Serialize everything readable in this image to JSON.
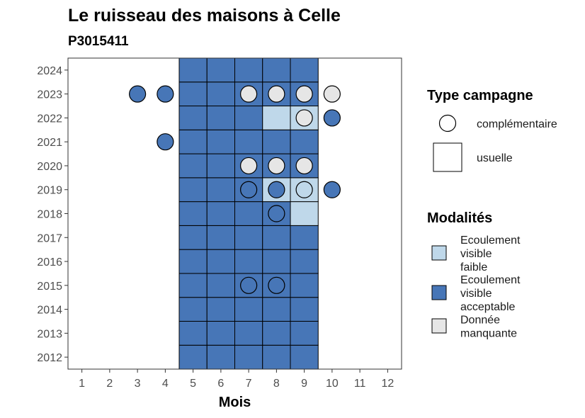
{
  "chart_data": {
    "type": "heatmap",
    "title": "Le ruisseau des maisons à Celle",
    "subtitle": "P3015411",
    "xlabel": "Mois",
    "ylabel": "",
    "x_ticks": [
      "1",
      "2",
      "3",
      "4",
      "5",
      "6",
      "7",
      "8",
      "9",
      "10",
      "11",
      "12"
    ],
    "y_ticks": [
      "2012",
      "2013",
      "2014",
      "2015",
      "2016",
      "2017",
      "2018",
      "2019",
      "2020",
      "2021",
      "2022",
      "2023",
      "2024"
    ],
    "xlim": [
      0.5,
      12.5
    ],
    "ylim": [
      2011.5,
      2024.5
    ],
    "grid": false,
    "colors": {
      "ecoulement_visible_faible": "#bfd8ea",
      "ecoulement_visible_acceptable": "#4776b7",
      "donnee_manquante": "#e6e6e6"
    },
    "legend_type": {
      "title": "Type campagne",
      "placement": "right",
      "entries": [
        {
          "key": "complementaire",
          "label": "complémentaire",
          "shape": "circle"
        },
        {
          "key": "usuelle",
          "label": "usuelle",
          "shape": "square"
        }
      ]
    },
    "legend_modalites": {
      "title": "Modalités",
      "placement": "right",
      "entries": [
        {
          "key": "ecoulement_visible_faible",
          "lines": [
            "Ecoulement",
            "visible",
            "faible"
          ]
        },
        {
          "key": "ecoulement_visible_acceptable",
          "lines": [
            "Ecoulement",
            "visible",
            "acceptable"
          ]
        },
        {
          "key": "donnee_manquante",
          "lines": [
            "Donnée",
            "manquante"
          ]
        }
      ]
    },
    "usuelle": {
      "months": [
        5,
        6,
        7,
        8,
        9
      ],
      "years": [
        2012,
        2013,
        2014,
        2015,
        2016,
        2017,
        2018,
        2019,
        2020,
        2021,
        2022,
        2023,
        2024
      ],
      "default_modalite": "ecoulement_visible_acceptable",
      "exceptions": [
        {
          "year": 2022,
          "month": 8,
          "modalite": "ecoulement_visible_faible"
        },
        {
          "year": 2022,
          "month": 9,
          "modalite": "ecoulement_visible_faible"
        },
        {
          "year": 2019,
          "month": 8,
          "modalite": "ecoulement_visible_faible"
        },
        {
          "year": 2019,
          "month": 9,
          "modalite": "ecoulement_visible_faible"
        },
        {
          "year": 2018,
          "month": 9,
          "modalite": "ecoulement_visible_faible"
        }
      ]
    },
    "complementaire": [
      {
        "year": 2023,
        "month": 3,
        "modalite": "ecoulement_visible_acceptable"
      },
      {
        "year": 2023,
        "month": 4,
        "modalite": "ecoulement_visible_acceptable"
      },
      {
        "year": 2023,
        "month": 7,
        "modalite": "donnee_manquante"
      },
      {
        "year": 2023,
        "month": 8,
        "modalite": "donnee_manquante"
      },
      {
        "year": 2023,
        "month": 9,
        "modalite": "donnee_manquante"
      },
      {
        "year": 2023,
        "month": 10,
        "modalite": "donnee_manquante"
      },
      {
        "year": 2022,
        "month": 9,
        "modalite": "donnee_manquante"
      },
      {
        "year": 2022,
        "month": 10,
        "modalite": "ecoulement_visible_acceptable"
      },
      {
        "year": 2021,
        "month": 4,
        "modalite": "ecoulement_visible_acceptable"
      },
      {
        "year": 2020,
        "month": 7,
        "modalite": "donnee_manquante"
      },
      {
        "year": 2020,
        "month": 8,
        "modalite": "donnee_manquante"
      },
      {
        "year": 2020,
        "month": 9,
        "modalite": "donnee_manquante"
      },
      {
        "year": 2019,
        "month": 7,
        "modalite": "ecoulement_visible_acceptable"
      },
      {
        "year": 2019,
        "month": 8,
        "modalite": "ecoulement_visible_acceptable"
      },
      {
        "year": 2019,
        "month": 9,
        "modalite": "ecoulement_visible_faible"
      },
      {
        "year": 2019,
        "month": 10,
        "modalite": "ecoulement_visible_acceptable"
      },
      {
        "year": 2018,
        "month": 8,
        "modalite": "ecoulement_visible_acceptable"
      },
      {
        "year": 2015,
        "month": 7,
        "modalite": "ecoulement_visible_acceptable"
      },
      {
        "year": 2015,
        "month": 8,
        "modalite": "ecoulement_visible_acceptable"
      }
    ]
  }
}
